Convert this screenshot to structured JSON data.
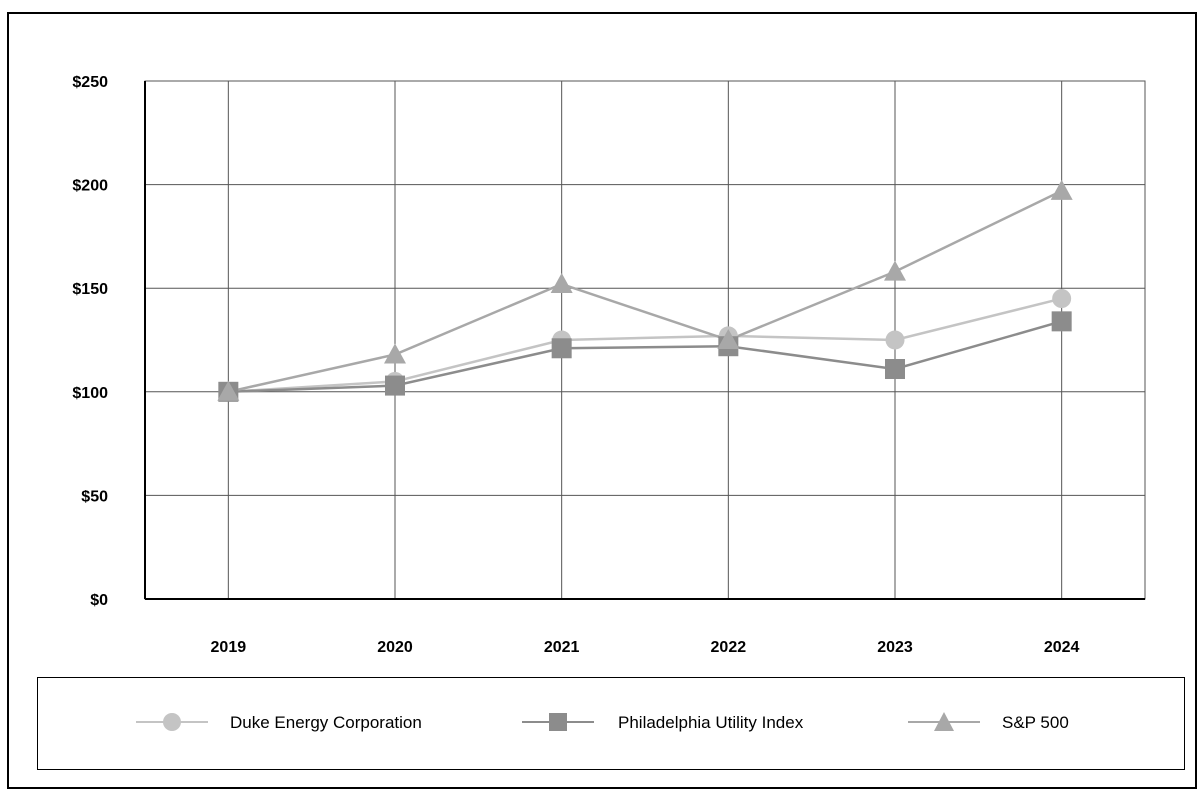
{
  "chart_data": {
    "type": "line",
    "title": "",
    "xlabel": "",
    "ylabel": "",
    "categories": [
      "2019",
      "2020",
      "2021",
      "2022",
      "2023",
      "2024"
    ],
    "ylim": [
      0,
      250
    ],
    "yticks": [
      0,
      50,
      100,
      150,
      200,
      250
    ],
    "ytick_labels": [
      "$0",
      "$50",
      "$100",
      "$150",
      "$200",
      "$250"
    ],
    "grid": true,
    "legend_position": "bottom",
    "series": [
      {
        "name": "Duke Energy Corporation",
        "marker": "circle",
        "color": "#c4c4c4",
        "values": [
          100,
          105,
          125,
          127,
          125,
          145
        ]
      },
      {
        "name": "Philadelphia Utility Index",
        "marker": "square",
        "color": "#8c8c8c",
        "values": [
          100,
          103,
          121,
          122,
          111,
          134
        ]
      },
      {
        "name": "S&P 500",
        "marker": "triangle",
        "color": "#a8a8a8",
        "values": [
          100,
          118,
          152,
          125,
          158,
          197
        ]
      }
    ]
  }
}
